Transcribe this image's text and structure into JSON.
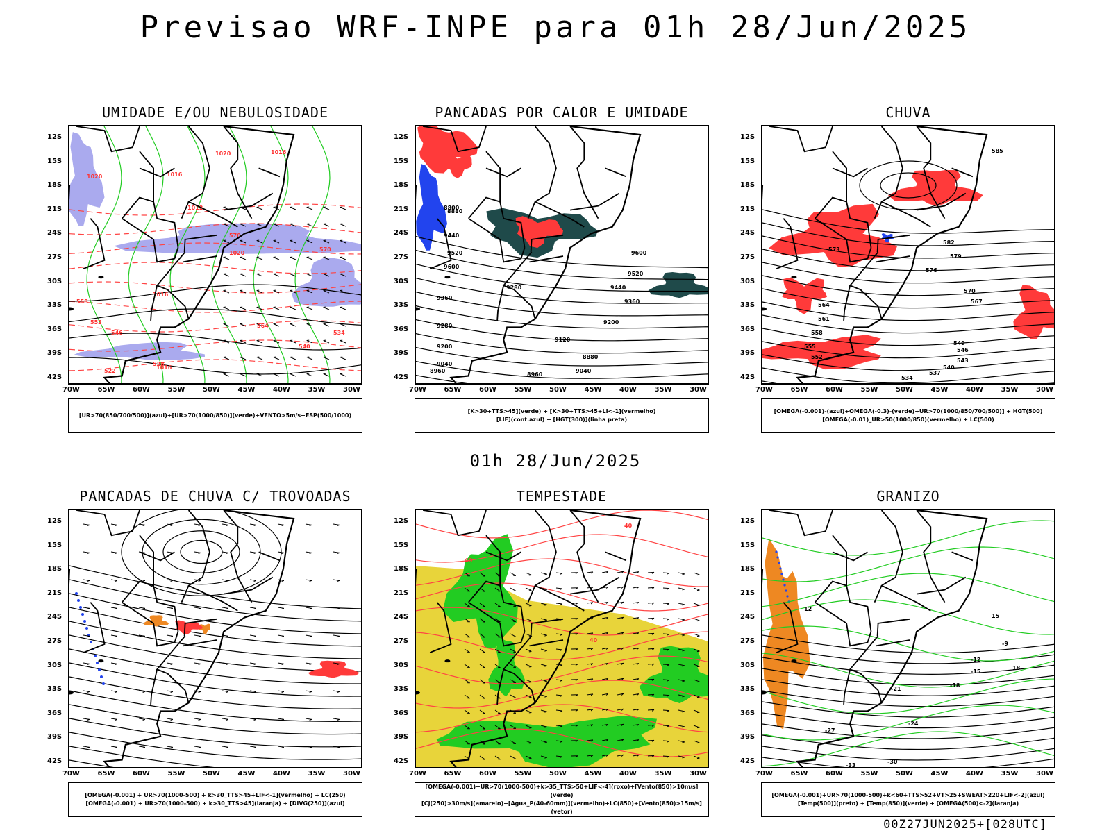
{
  "main_title": "Previsao WRF-INPE  para 01h 28/Jun/2025",
  "mid_title": "01h 28/Jun/2025",
  "footer_stamp": "00Z27JUN2025+[028UTC]",
  "lat_ticks": [
    "12S",
    "15S",
    "18S",
    "21S",
    "24S",
    "27S",
    "30S",
    "33S",
    "36S",
    "39S",
    "42S"
  ],
  "lon_ticks": [
    "70W",
    "65W",
    "60W",
    "55W",
    "50W",
    "45W",
    "40W",
    "35W",
    "30W"
  ],
  "colors": {
    "humid_blue": "#aaaaee",
    "green_line": "#22cc22",
    "red_fill": "#ff3a3a",
    "dark_teal": "#1f4a4a",
    "blue_fill": "#2244ee",
    "orange_fill": "#ee8822",
    "yellow_fill": "#e8d43a",
    "green_fill": "#22cc22"
  },
  "panels": [
    {
      "id": "umidade",
      "title": "UMIDADE E/OU NEBULOSIDADE",
      "legend": [
        "[UR>70(850/700/500)](azul)+[UR>70(1000/850)](verde)+VENTO>5m/s+ESP(500/1000)"
      ],
      "contour_labels": [
        "1016",
        "1020",
        "1016",
        "1020",
        "1016",
        "1016",
        "1020",
        "1012",
        "570",
        "570",
        "564",
        "558",
        "552",
        "546",
        "540",
        "534",
        "528",
        "522"
      ]
    },
    {
      "id": "pancadas",
      "title": "PANCADAS POR CALOR E UMIDADE",
      "legend": [
        "[K>30+TTS>45](verde) + [K>30+TTS>45+LI<-1](vermelho)",
        "[LIF](cont.azul) + [HGT(300)](linha preta)"
      ],
      "contour_labels": [
        "9600",
        "9520",
        "9440",
        "9360",
        "9280",
        "9200",
        "9120",
        "9040",
        "8960",
        "8880",
        "8800",
        "9600",
        "9520",
        "9440",
        "9360",
        "9280",
        "9200",
        "9040",
        "8960",
        "8880"
      ]
    },
    {
      "id": "chuva",
      "title": "CHUVA",
      "legend": [
        "[OMEGA(-0.001)-(azul)+OMEGA(-0.3)-(verde)+UR>70(1000/850/700/500)] + HGT(500)",
        "[OMEGA(-0.01)_UR>50(1000/850)(vermelho) + LC(500)"
      ],
      "contour_labels": [
        "585",
        "582",
        "579",
        "576",
        "573",
        "570",
        "567",
        "564",
        "561",
        "558",
        "555",
        "552",
        "549",
        "546",
        "543",
        "540",
        "537",
        "534"
      ]
    },
    {
      "id": "trovoadas",
      "title": "PANCADAS DE CHUVA C/ TROVOADAS",
      "legend": [
        "[OMEGA(-0.001) + UR>70(1000-500) + k>30_TTS>45+LIF<-1](vermelho) + LC(250)",
        "[OMEGA(-0.001) + UR>70(1000-500) + k>30_TTS>45](laranja) + [DIVG(250)](azul)"
      ],
      "contour_labels": []
    },
    {
      "id": "tempestade",
      "title": "TEMPESTADE",
      "legend": [
        "[OMEGA(-0.001)+UR>70(1000-500)+k>35_TTS>50+LIF<-4](roxo)+[Vento(850)>10m/s](verde)",
        "[CJ(250)>30m/s](amarelo)+[Agua_P(40-60mm)](vermelho)+LC(850)+[Vento(850)>15m/s](vetor)"
      ],
      "contour_labels": [
        "40",
        "40",
        "40"
      ]
    },
    {
      "id": "granizo",
      "title": "GRANIZO",
      "legend": [
        "[OMEGA(-0.001)+UR>70(1000-500)+k<60+TTS>52+VT>25+SWEAT>220+LIF<-2](azul)",
        "[Temp(500)](preto) + [Temp(850)](verde) + [OMEGA(500)<-2](laranja)"
      ],
      "contour_labels": [
        "-9",
        "-12",
        "-15",
        "-18",
        "-21",
        "-24",
        "-27",
        "-30",
        "-33",
        "12",
        "15",
        "18"
      ]
    }
  ]
}
